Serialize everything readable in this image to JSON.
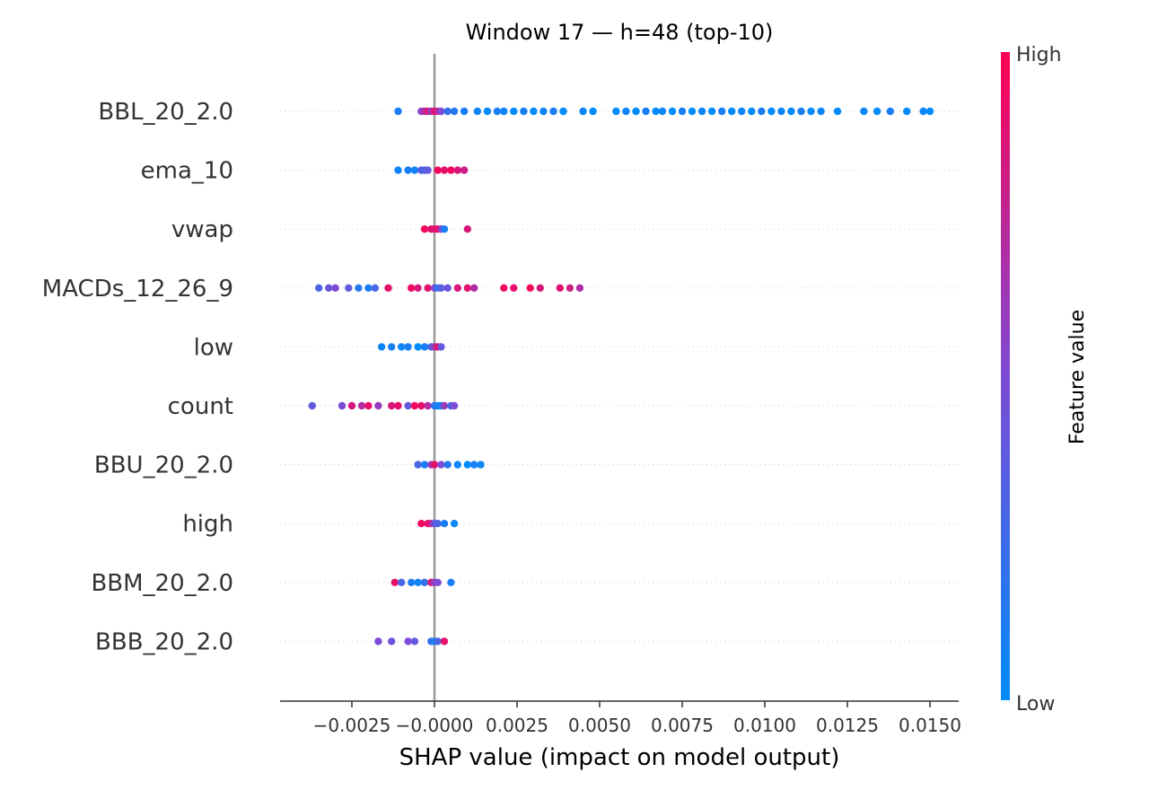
{
  "chart_data": {
    "type": "scatter",
    "subtype": "shap-beeswarm",
    "title": "Window 17 — h=48 (top-10)",
    "xlabel": "SHAP value (impact on model output)",
    "xlim": [
      -0.0046,
      0.0158
    ],
    "xticks": [
      -0.0025,
      0.0,
      0.0025,
      0.005,
      0.0075,
      0.01,
      0.0125,
      0.015
    ],
    "xtick_labels": [
      "−0.0025",
      "−0.0000",
      "0.0025",
      "0.0050",
      "0.0075",
      "0.0100",
      "0.0125",
      "0.0150"
    ],
    "colorbar": {
      "label": "Feature value",
      "high_label": "High",
      "low_label": "Low",
      "high_color": "#ff0052",
      "low_color": "#008bfb"
    },
    "grid": "dotted per feature row",
    "features": [
      {
        "name": "BBL_20_2.0",
        "points": [
          {
            "x": -0.0011,
            "v": 0.1
          },
          {
            "x": -0.0004,
            "v": 0.55
          },
          {
            "x": -0.0003,
            "v": 0.7
          },
          {
            "x": -0.0002,
            "v": 0.85
          },
          {
            "x": -0.0001,
            "v": 0.6
          },
          {
            "x": 0.0,
            "v": 0.9
          },
          {
            "x": 0.0001,
            "v": 0.75
          },
          {
            "x": 0.0002,
            "v": 0.5
          },
          {
            "x": 0.0004,
            "v": 0.2
          },
          {
            "x": 0.0006,
            "v": 0.15
          },
          {
            "x": 0.0009,
            "v": 0.1
          },
          {
            "x": 0.0013,
            "v": 0.05
          },
          {
            "x": 0.0016,
            "v": 0.0
          },
          {
            "x": 0.0019,
            "v": 0.1
          },
          {
            "x": 0.0021,
            "v": 0.05
          },
          {
            "x": 0.0024,
            "v": 0.0
          },
          {
            "x": 0.0027,
            "v": 0.1
          },
          {
            "x": 0.003,
            "v": 0.0
          },
          {
            "x": 0.0033,
            "v": 0.05
          },
          {
            "x": 0.0036,
            "v": 0.1
          },
          {
            "x": 0.0039,
            "v": 0.0
          },
          {
            "x": 0.0045,
            "v": 0.05
          },
          {
            "x": 0.0048,
            "v": 0.0
          },
          {
            "x": 0.0055,
            "v": 0.0
          },
          {
            "x": 0.0058,
            "v": 0.05
          },
          {
            "x": 0.0061,
            "v": 0.0
          },
          {
            "x": 0.0064,
            "v": 0.1
          },
          {
            "x": 0.0067,
            "v": 0.0
          },
          {
            "x": 0.0069,
            "v": 0.05
          },
          {
            "x": 0.0072,
            "v": 0.0
          },
          {
            "x": 0.0075,
            "v": 0.1
          },
          {
            "x": 0.0078,
            "v": 0.0
          },
          {
            "x": 0.0081,
            "v": 0.05
          },
          {
            "x": 0.0084,
            "v": 0.0
          },
          {
            "x": 0.0087,
            "v": 0.1
          },
          {
            "x": 0.009,
            "v": 0.0
          },
          {
            "x": 0.0093,
            "v": 0.05
          },
          {
            "x": 0.0096,
            "v": 0.0
          },
          {
            "x": 0.0099,
            "v": 0.1
          },
          {
            "x": 0.0102,
            "v": 0.0
          },
          {
            "x": 0.0105,
            "v": 0.05
          },
          {
            "x": 0.0108,
            "v": 0.0
          },
          {
            "x": 0.0111,
            "v": 0.1
          },
          {
            "x": 0.0114,
            "v": 0.0
          },
          {
            "x": 0.0117,
            "v": 0.05
          },
          {
            "x": 0.0122,
            "v": 0.0
          },
          {
            "x": 0.013,
            "v": 0.05
          },
          {
            "x": 0.0134,
            "v": 0.0
          },
          {
            "x": 0.0138,
            "v": 0.1
          },
          {
            "x": 0.0143,
            "v": 0.0
          },
          {
            "x": 0.0148,
            "v": 0.05
          },
          {
            "x": 0.015,
            "v": 0.0
          }
        ]
      },
      {
        "name": "ema_10",
        "points": [
          {
            "x": -0.0011,
            "v": 0.05
          },
          {
            "x": -0.0008,
            "v": 0.1
          },
          {
            "x": -0.0006,
            "v": 0.05
          },
          {
            "x": -0.0004,
            "v": 0.35
          },
          {
            "x": -0.0003,
            "v": 0.3
          },
          {
            "x": -0.0002,
            "v": 0.4
          },
          {
            "x": 0.0001,
            "v": 0.95
          },
          {
            "x": 0.0003,
            "v": 0.9
          },
          {
            "x": 0.0005,
            "v": 0.95
          },
          {
            "x": 0.0007,
            "v": 0.85
          },
          {
            "x": 0.0009,
            "v": 0.8
          }
        ]
      },
      {
        "name": "vwap",
        "points": [
          {
            "x": -0.0003,
            "v": 0.95
          },
          {
            "x": -0.0001,
            "v": 0.9
          },
          {
            "x": 0.0,
            "v": 0.85
          },
          {
            "x": 0.0001,
            "v": 0.95
          },
          {
            "x": 0.0002,
            "v": 0.6
          },
          {
            "x": 0.0003,
            "v": 0.1
          },
          {
            "x": 0.001,
            "v": 0.85
          }
        ]
      },
      {
        "name": "MACDs_12_26_9",
        "points": [
          {
            "x": -0.0035,
            "v": 0.3
          },
          {
            "x": -0.0032,
            "v": 0.45
          },
          {
            "x": -0.003,
            "v": 0.5
          },
          {
            "x": -0.0026,
            "v": 0.4
          },
          {
            "x": -0.0023,
            "v": 0.15
          },
          {
            "x": -0.002,
            "v": 0.1
          },
          {
            "x": -0.0018,
            "v": 0.3
          },
          {
            "x": -0.0014,
            "v": 0.9
          },
          {
            "x": -0.0007,
            "v": 0.95
          },
          {
            "x": -0.0005,
            "v": 0.85
          },
          {
            "x": -0.0002,
            "v": 0.9
          },
          {
            "x": 0.0,
            "v": 0.5
          },
          {
            "x": 0.0001,
            "v": 0.2
          },
          {
            "x": 0.0002,
            "v": 0.35
          },
          {
            "x": 0.0004,
            "v": 0.4
          },
          {
            "x": 0.0007,
            "v": 0.85
          },
          {
            "x": 0.001,
            "v": 0.9
          },
          {
            "x": 0.0012,
            "v": 0.7
          },
          {
            "x": 0.0021,
            "v": 0.95
          },
          {
            "x": 0.0024,
            "v": 0.9
          },
          {
            "x": 0.0029,
            "v": 0.95
          },
          {
            "x": 0.0032,
            "v": 0.85
          },
          {
            "x": 0.0038,
            "v": 0.9
          },
          {
            "x": 0.0041,
            "v": 0.8
          },
          {
            "x": 0.0044,
            "v": 0.7
          }
        ]
      },
      {
        "name": "low",
        "points": [
          {
            "x": -0.0016,
            "v": 0.05
          },
          {
            "x": -0.0013,
            "v": 0.1
          },
          {
            "x": -0.001,
            "v": 0.05
          },
          {
            "x": -0.0008,
            "v": 0.1
          },
          {
            "x": -0.0005,
            "v": 0.0
          },
          {
            "x": -0.0003,
            "v": 0.1
          },
          {
            "x": -0.0001,
            "v": 0.3
          },
          {
            "x": 0.0,
            "v": 0.6
          },
          {
            "x": 0.0001,
            "v": 0.9
          },
          {
            "x": 0.0002,
            "v": 0.4
          }
        ]
      },
      {
        "name": "count",
        "points": [
          {
            "x": -0.0037,
            "v": 0.4
          },
          {
            "x": -0.0028,
            "v": 0.5
          },
          {
            "x": -0.0025,
            "v": 0.85
          },
          {
            "x": -0.0022,
            "v": 0.7
          },
          {
            "x": -0.002,
            "v": 0.9
          },
          {
            "x": -0.0017,
            "v": 0.6
          },
          {
            "x": -0.0013,
            "v": 0.85
          },
          {
            "x": -0.0011,
            "v": 0.9
          },
          {
            "x": -0.0008,
            "v": 0.4
          },
          {
            "x": -0.0006,
            "v": 0.95
          },
          {
            "x": -0.0004,
            "v": 0.9
          },
          {
            "x": -0.0002,
            "v": 0.7
          },
          {
            "x": 0.0,
            "v": 0.2
          },
          {
            "x": 0.0001,
            "v": 0.05
          },
          {
            "x": 0.0002,
            "v": 0.1
          },
          {
            "x": 0.0003,
            "v": 0.6
          },
          {
            "x": 0.0005,
            "v": 0.3
          },
          {
            "x": 0.0006,
            "v": 0.5
          }
        ]
      },
      {
        "name": "BBU_20_2.0",
        "points": [
          {
            "x": -0.0005,
            "v": 0.3
          },
          {
            "x": -0.0003,
            "v": 0.1
          },
          {
            "x": -0.0001,
            "v": 0.6
          },
          {
            "x": 0.0,
            "v": 0.9
          },
          {
            "x": 0.0002,
            "v": 0.5
          },
          {
            "x": 0.0004,
            "v": 0.15
          },
          {
            "x": 0.0007,
            "v": 0.05
          },
          {
            "x": 0.001,
            "v": 0.0
          },
          {
            "x": 0.0012,
            "v": 0.1
          },
          {
            "x": 0.0014,
            "v": 0.05
          }
        ]
      },
      {
        "name": "high",
        "points": [
          {
            "x": -0.0004,
            "v": 0.95
          },
          {
            "x": -0.0002,
            "v": 0.9
          },
          {
            "x": -0.0001,
            "v": 0.8
          },
          {
            "x": 0.0,
            "v": 0.4
          },
          {
            "x": 0.0001,
            "v": 0.3
          },
          {
            "x": 0.0003,
            "v": 0.1
          },
          {
            "x": 0.0006,
            "v": 0.05
          }
        ]
      },
      {
        "name": "BBM_20_2.0",
        "points": [
          {
            "x": -0.0012,
            "v": 0.9
          },
          {
            "x": -0.001,
            "v": 0.3
          },
          {
            "x": -0.0007,
            "v": 0.1
          },
          {
            "x": -0.0005,
            "v": 0.05
          },
          {
            "x": -0.0003,
            "v": 0.2
          },
          {
            "x": -0.0001,
            "v": 0.85
          },
          {
            "x": 0.0,
            "v": 0.6
          },
          {
            "x": 0.0001,
            "v": 0.5
          },
          {
            "x": 0.0005,
            "v": 0.1
          }
        ]
      },
      {
        "name": "BBB_20_2.0",
        "points": [
          {
            "x": -0.0017,
            "v": 0.5
          },
          {
            "x": -0.0013,
            "v": 0.45
          },
          {
            "x": -0.0008,
            "v": 0.5
          },
          {
            "x": -0.0006,
            "v": 0.4
          },
          {
            "x": -0.0001,
            "v": 0.2
          },
          {
            "x": 0.0,
            "v": 0.1
          },
          {
            "x": 0.0001,
            "v": 0.3
          },
          {
            "x": 0.0003,
            "v": 0.9
          }
        ]
      }
    ]
  }
}
